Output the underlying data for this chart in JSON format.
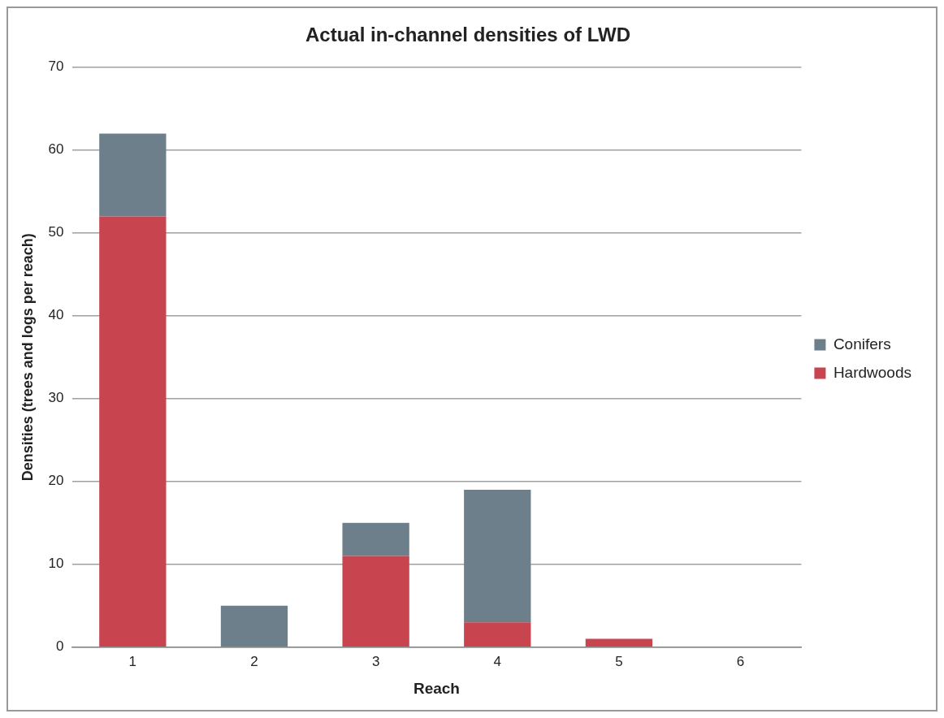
{
  "chart_data": {
    "type": "bar",
    "title": "Actual in-channel densities of LWD",
    "xlabel": "Reach",
    "ylabel": "Densities (trees and logs per reach)",
    "categories": [
      "1",
      "2",
      "3",
      "4",
      "5",
      "6"
    ],
    "stacked": true,
    "series": [
      {
        "name": "Hardwoods",
        "color": "#c8454f",
        "values": [
          52,
          0,
          11,
          3,
          1,
          0
        ]
      },
      {
        "name": "Conifers",
        "color": "#6e7f8c",
        "values": [
          10,
          5,
          4,
          16,
          0,
          0
        ]
      }
    ],
    "ylim": [
      0,
      70
    ],
    "yticks": [
      0,
      10,
      20,
      30,
      40,
      50,
      60,
      70
    ],
    "grid": "y",
    "legend": "right"
  }
}
